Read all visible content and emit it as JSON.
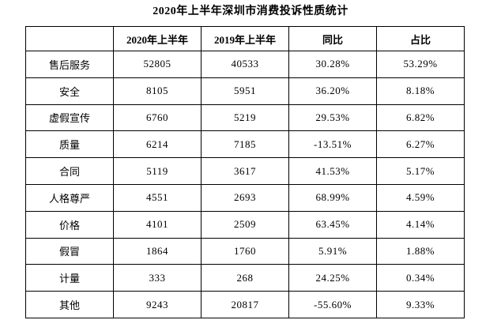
{
  "title": "2020年上半年深圳市消费投诉性质统计",
  "colors": {
    "background": "#ffffff",
    "border": "#000000",
    "text": "#000000"
  },
  "chart_data": {
    "type": "table",
    "title": "2020年上半年深圳市消费投诉性质统计",
    "columns": [
      "",
      "2020年上半年",
      "2019年上半年",
      "同比",
      "占比"
    ],
    "rows": [
      [
        "售后服务",
        "52805",
        "40533",
        "30.28%",
        "53.29%"
      ],
      [
        "安全",
        "8105",
        "5951",
        "36.20%",
        "8.18%"
      ],
      [
        "虚假宣传",
        "6760",
        "5219",
        "29.53%",
        "6.82%"
      ],
      [
        "质量",
        "6214",
        "7185",
        "-13.51%",
        "6.27%"
      ],
      [
        "合同",
        "5119",
        "3617",
        "41.53%",
        "5.17%"
      ],
      [
        "人格尊严",
        "4551",
        "2693",
        "68.99%",
        "4.59%"
      ],
      [
        "价格",
        "4101",
        "2509",
        "63.45%",
        "4.14%"
      ],
      [
        "假冒",
        "1864",
        "1760",
        "5.91%",
        "1.88%"
      ],
      [
        "计量",
        "333",
        "268",
        "24.25%",
        "0.34%"
      ],
      [
        "其他",
        "9243",
        "20817",
        "-55.60%",
        "9.33%"
      ]
    ]
  }
}
